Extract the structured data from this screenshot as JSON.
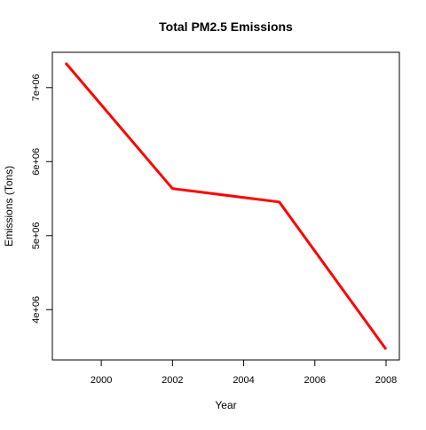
{
  "chart_data": {
    "type": "line",
    "title": "Total PM2.5 Emissions",
    "xlabel": "Year",
    "ylabel": "Emissions (Tons)",
    "x": [
      1999,
      2002,
      2005,
      2008
    ],
    "series": [
      {
        "values": [
          7332967,
          5635780,
          5454703,
          3464206
        ],
        "color": "#ff0000"
      }
    ],
    "xlim": [
      1999,
      2008
    ],
    "ylim": [
      3464206,
      7332967
    ],
    "xticks": [
      2000,
      2002,
      2004,
      2006,
      2008
    ],
    "xtick_labels": [
      "2000",
      "2002",
      "2004",
      "2006",
      "2008"
    ],
    "yticks": [
      4000000,
      5000000,
      6000000,
      7000000
    ],
    "ytick_labels": [
      "4e+06",
      "5e+06",
      "6e+06",
      "7e+06"
    ],
    "grid": false,
    "legend": "none"
  }
}
